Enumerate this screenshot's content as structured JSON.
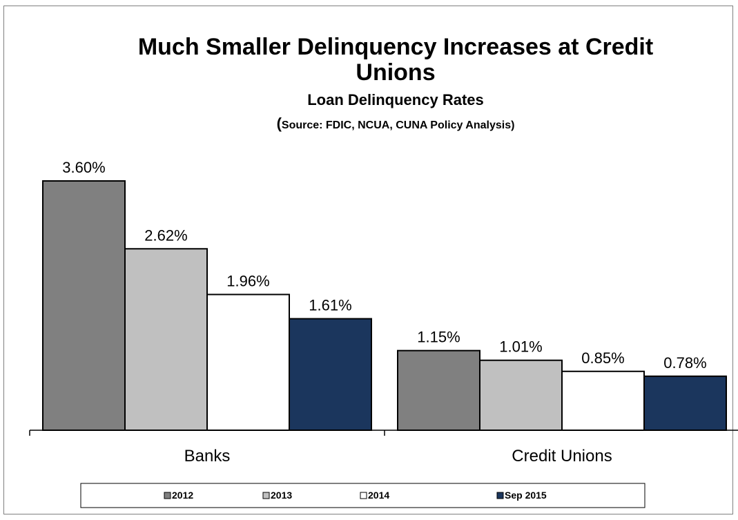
{
  "chart_data": {
    "type": "bar",
    "title_line1": "Much Smaller Delinquency Increases at Credit",
    "title_line2": "Unions",
    "subtitle": "Loan Delinquency Rates",
    "source_open_paren": "(",
    "source": "Source: FDIC, NCUA, CUNA Policy Analysis)",
    "categories": [
      "Banks",
      "Credit Unions"
    ],
    "series": [
      {
        "name": "2012",
        "color": "#808080",
        "values": [
          3.6,
          1.15
        ],
        "labels": [
          "3.60%",
          "1.15%"
        ]
      },
      {
        "name": "2013",
        "color": "#c0c0c0",
        "values": [
          2.62,
          1.01
        ],
        "labels": [
          "2.62%",
          "1.01%"
        ]
      },
      {
        "name": "2014",
        "color": "#ffffff",
        "values": [
          1.96,
          0.85
        ],
        "labels": [
          "1.96%",
          "0.85%"
        ]
      },
      {
        "name": "Sep 2015",
        "color": "#1b365d",
        "values": [
          1.61,
          0.78
        ],
        "labels": [
          "1.61%",
          "0.78%"
        ]
      }
    ],
    "ylim": [
      0,
      3.6
    ],
    "legend_position": "bottom",
    "grid": false
  }
}
